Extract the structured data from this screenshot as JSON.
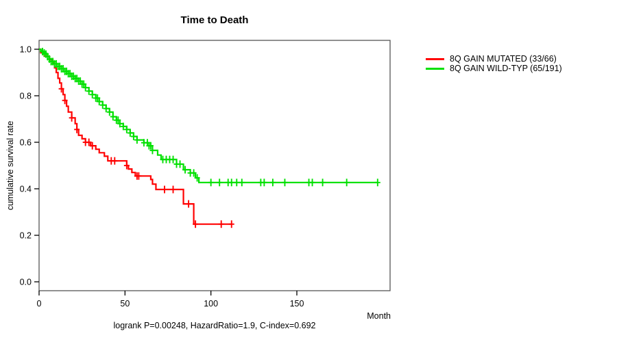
{
  "title": "Time to Death",
  "axes": {
    "y_label": "cumulative survival rate",
    "x_label": "Month"
  },
  "annotation": "logrank P=0.00248, HazardRatio=1.9, C-index=0.692",
  "legend": {
    "items": [
      {
        "label": "8Q GAIN MUTATED (33/66)",
        "color": "#ff0000"
      },
      {
        "label": "8Q GAIN WILD-TYP (65/191)",
        "color": "#00e000"
      }
    ]
  },
  "colors": {
    "mutated": "#ff0000",
    "wildtype": "#00e000",
    "box_border": "#555555",
    "axis": "#000000",
    "text": "#000000",
    "background": "#ffffff"
  },
  "chart_data": {
    "type": "line",
    "subtype": "kaplan-meier-step",
    "title": "Time to Death",
    "xlabel": "Month",
    "ylabel": "cumulative survival rate",
    "xlim": [
      0,
      204
    ],
    "ylim": [
      0,
      1.0
    ],
    "x_ticks": [
      0,
      50,
      100,
      150
    ],
    "y_ticks": [
      0.0,
      0.2,
      0.4,
      0.6,
      0.8,
      1.0
    ],
    "grid": false,
    "legend_position": "outside-top-right",
    "annotation": "logrank P=0.00248, HazardRatio=1.9, C-index=0.692",
    "series": [
      {
        "name": "8Q GAIN MUTATED (33/66)",
        "color": "#ff0000",
        "n": 66,
        "events": 33,
        "end_time": 112,
        "steps": [
          [
            0,
            1.0
          ],
          [
            1,
            0.985
          ],
          [
            3,
            0.97
          ],
          [
            6,
            0.955
          ],
          [
            8,
            0.94
          ],
          [
            9,
            0.92
          ],
          [
            10,
            0.9
          ],
          [
            11,
            0.875
          ],
          [
            12,
            0.855
          ],
          [
            13,
            0.83
          ],
          [
            14,
            0.805
          ],
          [
            15,
            0.78
          ],
          [
            16,
            0.755
          ],
          [
            17,
            0.73
          ],
          [
            19,
            0.705
          ],
          [
            21,
            0.68
          ],
          [
            22,
            0.655
          ],
          [
            23,
            0.63
          ],
          [
            25,
            0.615
          ],
          [
            27,
            0.6
          ],
          [
            30,
            0.585
          ],
          [
            33,
            0.57
          ],
          [
            35,
            0.555
          ],
          [
            38,
            0.54
          ],
          [
            40,
            0.52
          ],
          [
            51,
            0.5
          ],
          [
            52,
            0.485
          ],
          [
            54,
            0.47
          ],
          [
            56,
            0.455
          ],
          [
            65,
            0.44
          ],
          [
            66,
            0.42
          ],
          [
            68,
            0.397
          ],
          [
            84,
            0.335
          ],
          [
            90,
            0.248
          ]
        ],
        "censor_times": [
          13,
          15,
          19,
          22,
          27,
          29,
          31,
          42,
          44,
          51,
          57,
          58,
          73,
          78,
          87,
          91,
          106,
          112
        ]
      },
      {
        "name": "8Q GAIN WILD-TYP (65/191)",
        "color": "#00e000",
        "n": 191,
        "events": 65,
        "end_time": 197,
        "steps": [
          [
            0,
            1.0
          ],
          [
            1,
            0.995
          ],
          [
            2,
            0.99
          ],
          [
            3,
            0.984
          ],
          [
            4,
            0.979
          ],
          [
            5,
            0.968
          ],
          [
            6,
            0.958
          ],
          [
            7,
            0.947
          ],
          [
            9,
            0.937
          ],
          [
            11,
            0.926
          ],
          [
            13,
            0.916
          ],
          [
            15,
            0.905
          ],
          [
            17,
            0.895
          ],
          [
            19,
            0.884
          ],
          [
            21,
            0.874
          ],
          [
            23,
            0.863
          ],
          [
            25,
            0.85
          ],
          [
            27,
            0.835
          ],
          [
            29,
            0.82
          ],
          [
            31,
            0.805
          ],
          [
            33,
            0.79
          ],
          [
            35,
            0.775
          ],
          [
            37,
            0.76
          ],
          [
            39,
            0.745
          ],
          [
            41,
            0.73
          ],
          [
            43,
            0.71
          ],
          [
            45,
            0.695
          ],
          [
            47,
            0.68
          ],
          [
            49,
            0.668
          ],
          [
            51,
            0.655
          ],
          [
            53,
            0.64
          ],
          [
            55,
            0.625
          ],
          [
            57,
            0.61
          ],
          [
            61,
            0.598
          ],
          [
            64,
            0.585
          ],
          [
            66,
            0.565
          ],
          [
            69,
            0.545
          ],
          [
            71,
            0.526
          ],
          [
            80,
            0.506
          ],
          [
            84,
            0.482
          ],
          [
            88,
            0.468
          ],
          [
            91,
            0.447
          ],
          [
            93,
            0.427
          ]
        ],
        "censor_times": [
          2,
          3,
          4,
          5,
          6,
          7,
          8,
          9,
          10,
          11,
          12,
          13,
          14,
          15,
          16,
          17,
          18,
          19,
          20,
          21,
          22,
          23,
          24,
          25,
          26,
          27,
          29,
          31,
          33,
          34,
          35,
          37,
          39,
          41,
          43,
          45,
          46,
          47,
          49,
          51,
          53,
          55,
          57,
          61,
          63,
          64,
          65,
          66,
          72,
          74,
          76,
          78,
          80,
          82,
          85,
          88,
          90,
          92,
          100,
          105,
          110,
          112,
          115,
          118,
          129,
          131,
          136,
          143,
          157,
          159,
          165,
          179,
          197
        ]
      }
    ]
  }
}
